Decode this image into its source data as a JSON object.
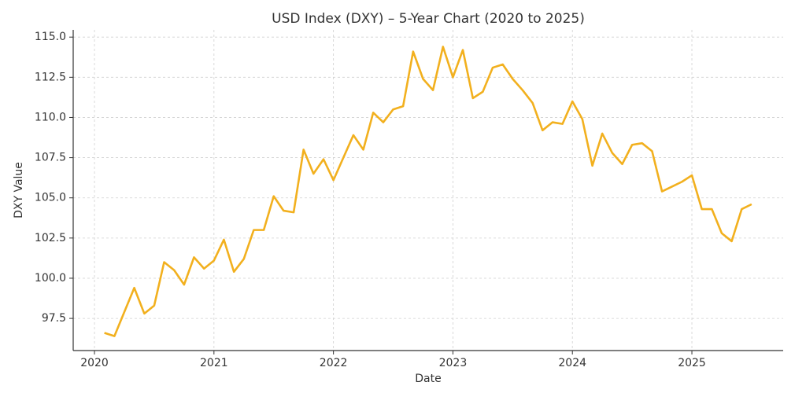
{
  "chart_data": {
    "type": "line",
    "title": "USD Index (DXY) – 5-Year Chart (2020 to 2025)",
    "x_label": "Date",
    "y_label": "DXY Value",
    "x": [
      2020.083,
      2020.167,
      2020.25,
      2020.333,
      2020.417,
      2020.5,
      2020.583,
      2020.667,
      2020.75,
      2020.833,
      2020.917,
      2021,
      2021.083,
      2021.167,
      2021.25,
      2021.333,
      2021.417,
      2021.5,
      2021.583,
      2021.667,
      2021.75,
      2021.833,
      2021.917,
      2022,
      2022.083,
      2022.167,
      2022.25,
      2022.333,
      2022.417,
      2022.5,
      2022.583,
      2022.667,
      2022.75,
      2022.833,
      2022.917,
      2023,
      2023.083,
      2023.167,
      2023.25,
      2023.333,
      2023.417,
      2023.5,
      2023.583,
      2023.667,
      2023.75,
      2023.833,
      2023.917,
      2024,
      2024.083,
      2024.167,
      2024.25,
      2024.333,
      2024.417,
      2024.5,
      2024.583,
      2024.667,
      2024.75,
      2024.833,
      2024.917,
      2025,
      2025.083,
      2025.167,
      2025.25,
      2025.333,
      2025.417,
      2025.5
    ],
    "series": [
      {
        "name": "DXY",
        "color": "#f2b01e",
        "values": [
          96.6,
          96.4,
          97.9,
          99.4,
          97.8,
          98.3,
          101.0,
          100.5,
          99.6,
          101.3,
          100.6,
          101.1,
          102.4,
          100.4,
          101.2,
          103.0,
          103.0,
          105.1,
          104.2,
          104.1,
          108.0,
          106.5,
          107.4,
          106.1,
          107.5,
          108.9,
          108.0,
          110.3,
          109.7,
          110.5,
          110.7,
          114.1,
          112.4,
          111.7,
          114.4,
          112.5,
          114.2,
          111.2,
          111.6,
          113.1,
          113.3,
          112.4,
          111.7,
          110.9,
          109.2,
          109.7,
          109.6,
          111.0,
          109.9,
          107.0,
          109.0,
          107.8,
          107.1,
          108.3,
          108.4,
          107.9,
          105.4,
          105.7,
          106.0,
          106.4,
          104.3,
          104.3,
          102.8,
          102.3,
          104.3,
          104.6
        ]
      }
    ],
    "xlim": [
      2019.822,
      2025.764
    ],
    "xticks": [
      2020,
      2021,
      2022,
      2023,
      2024,
      2025
    ],
    "ylim": [
      95.5,
      115.45
    ],
    "yticks": [
      97.5,
      {
        "value": 100,
        "label": "100.0"
      },
      102.5,
      {
        "value": 105,
        "label": "105.0"
      },
      107.5,
      {
        "value": 110,
        "label": "110.0"
      },
      112.5,
      {
        "value": 115,
        "label": "115.0"
      }
    ],
    "grid": true
  }
}
